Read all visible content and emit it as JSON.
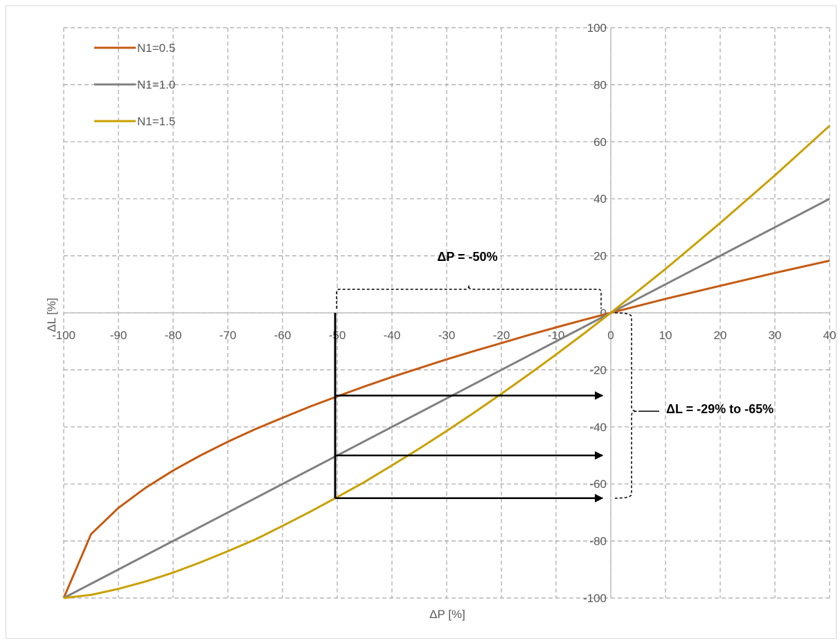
{
  "chart_data": {
    "type": "line",
    "title": "",
    "xlabel": "ΔP [%]",
    "ylabel": "ΔL [%]",
    "xlim": [
      -100,
      40
    ],
    "ylim": [
      -100,
      100
    ],
    "x_ticks": [
      -100,
      -90,
      -80,
      -70,
      -60,
      -50,
      -40,
      -30,
      -20,
      -10,
      0,
      10,
      20,
      30,
      40
    ],
    "y_ticks": [
      -100,
      -80,
      -60,
      -40,
      -20,
      0,
      20,
      40,
      60,
      80,
      100
    ],
    "grid": "dashed",
    "legend_position": "top-left",
    "series": [
      {
        "name": "N1=0.5",
        "color": "#C55A11",
        "points": [
          [
            -100,
            -100
          ],
          [
            -95,
            -77.6
          ],
          [
            -90,
            -68.4
          ],
          [
            -85,
            -61.3
          ],
          [
            -80,
            -55.3
          ],
          [
            -75,
            -50
          ],
          [
            -70,
            -45.2
          ],
          [
            -65,
            -40.8
          ],
          [
            -60,
            -36.8
          ],
          [
            -55,
            -32.9
          ],
          [
            -50,
            -29.3
          ],
          [
            -45,
            -25.8
          ],
          [
            -40,
            -22.5
          ],
          [
            -35,
            -19.4
          ],
          [
            -30,
            -16.3
          ],
          [
            -25,
            -13.4
          ],
          [
            -20,
            -10.6
          ],
          [
            -15,
            -7.8
          ],
          [
            -10,
            -5.1
          ],
          [
            -5,
            -2.5
          ],
          [
            0,
            0
          ],
          [
            10,
            4.9
          ],
          [
            20,
            9.5
          ],
          [
            30,
            14
          ],
          [
            40,
            18.3
          ]
        ]
      },
      {
        "name": "N1=1.0",
        "color": "#808080",
        "points": [
          [
            -100,
            -100
          ],
          [
            0,
            0
          ],
          [
            40,
            40
          ]
        ]
      },
      {
        "name": "N1=1.5",
        "color": "#C9A000",
        "points": [
          [
            -100,
            -100
          ],
          [
            -95,
            -98.9
          ],
          [
            -90,
            -96.8
          ],
          [
            -85,
            -94.2
          ],
          [
            -80,
            -91.1
          ],
          [
            -75,
            -87.5
          ],
          [
            -70,
            -83.6
          ],
          [
            -65,
            -79.5
          ],
          [
            -60,
            -74.7
          ],
          [
            -55,
            -69.8
          ],
          [
            -50,
            -64.6
          ],
          [
            -45,
            -59.3
          ],
          [
            -40,
            -53.5
          ],
          [
            -35,
            -47.6
          ],
          [
            -30,
            -41.4
          ],
          [
            -25,
            -35
          ],
          [
            -20,
            -28.4
          ],
          [
            -15,
            -21.6
          ],
          [
            -10,
            -14.6
          ],
          [
            -5,
            -7.4
          ],
          [
            0,
            0
          ],
          [
            10,
            15.4
          ],
          [
            20,
            31.5
          ],
          [
            30,
            48.2
          ],
          [
            40,
            65.6
          ]
        ]
      }
    ],
    "annotations": [
      {
        "text": "ΔP = -50%"
      },
      {
        "text": "ΔL = -29% to -65%"
      }
    ],
    "arrows_from_x": -50,
    "arrows_levels": [
      -29,
      -50,
      -65
    ]
  }
}
